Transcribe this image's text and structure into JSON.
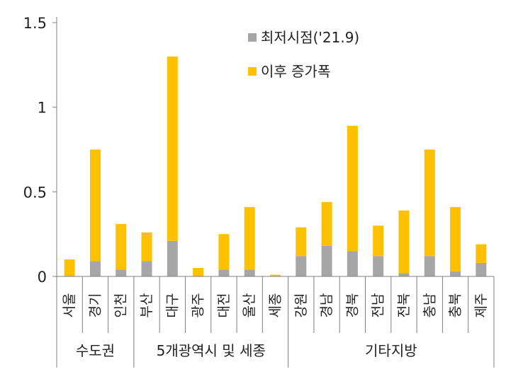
{
  "chart_data": {
    "type": "bar",
    "stacked": true,
    "title": "",
    "xlabel": "",
    "ylabel": "",
    "ylim": [
      0,
      1.5
    ],
    "yticks": [
      "0",
      "0.5",
      "1",
      "1.5"
    ],
    "grid": false,
    "legend_position": "top-right",
    "categories": [
      "서울",
      "경기",
      "인천",
      "부산",
      "대구",
      "광주",
      "대전",
      "울산",
      "세종",
      "강원",
      "경남",
      "경북",
      "전남",
      "전북",
      "충남",
      "충북",
      "제주"
    ],
    "groups": [
      {
        "label": "수도권",
        "count": 3
      },
      {
        "label": "5개광역시 및 세종",
        "count": 6
      },
      {
        "label": "기타지방",
        "count": 8
      }
    ],
    "series": [
      {
        "name": "최저시점('21.9)",
        "color": "#a6a6a6",
        "values": [
          0.0,
          0.09,
          0.04,
          0.09,
          0.21,
          0.0,
          0.04,
          0.04,
          0.0,
          0.12,
          0.18,
          0.15,
          0.12,
          0.02,
          0.12,
          0.03,
          0.08
        ]
      },
      {
        "name": "이후 증가폭",
        "color": "#ffc000",
        "values": [
          0.1,
          0.66,
          0.27,
          0.17,
          1.09,
          0.05,
          0.21,
          0.37,
          0.01,
          0.17,
          0.26,
          0.74,
          0.18,
          0.37,
          0.63,
          0.38,
          0.11
        ]
      }
    ]
  }
}
